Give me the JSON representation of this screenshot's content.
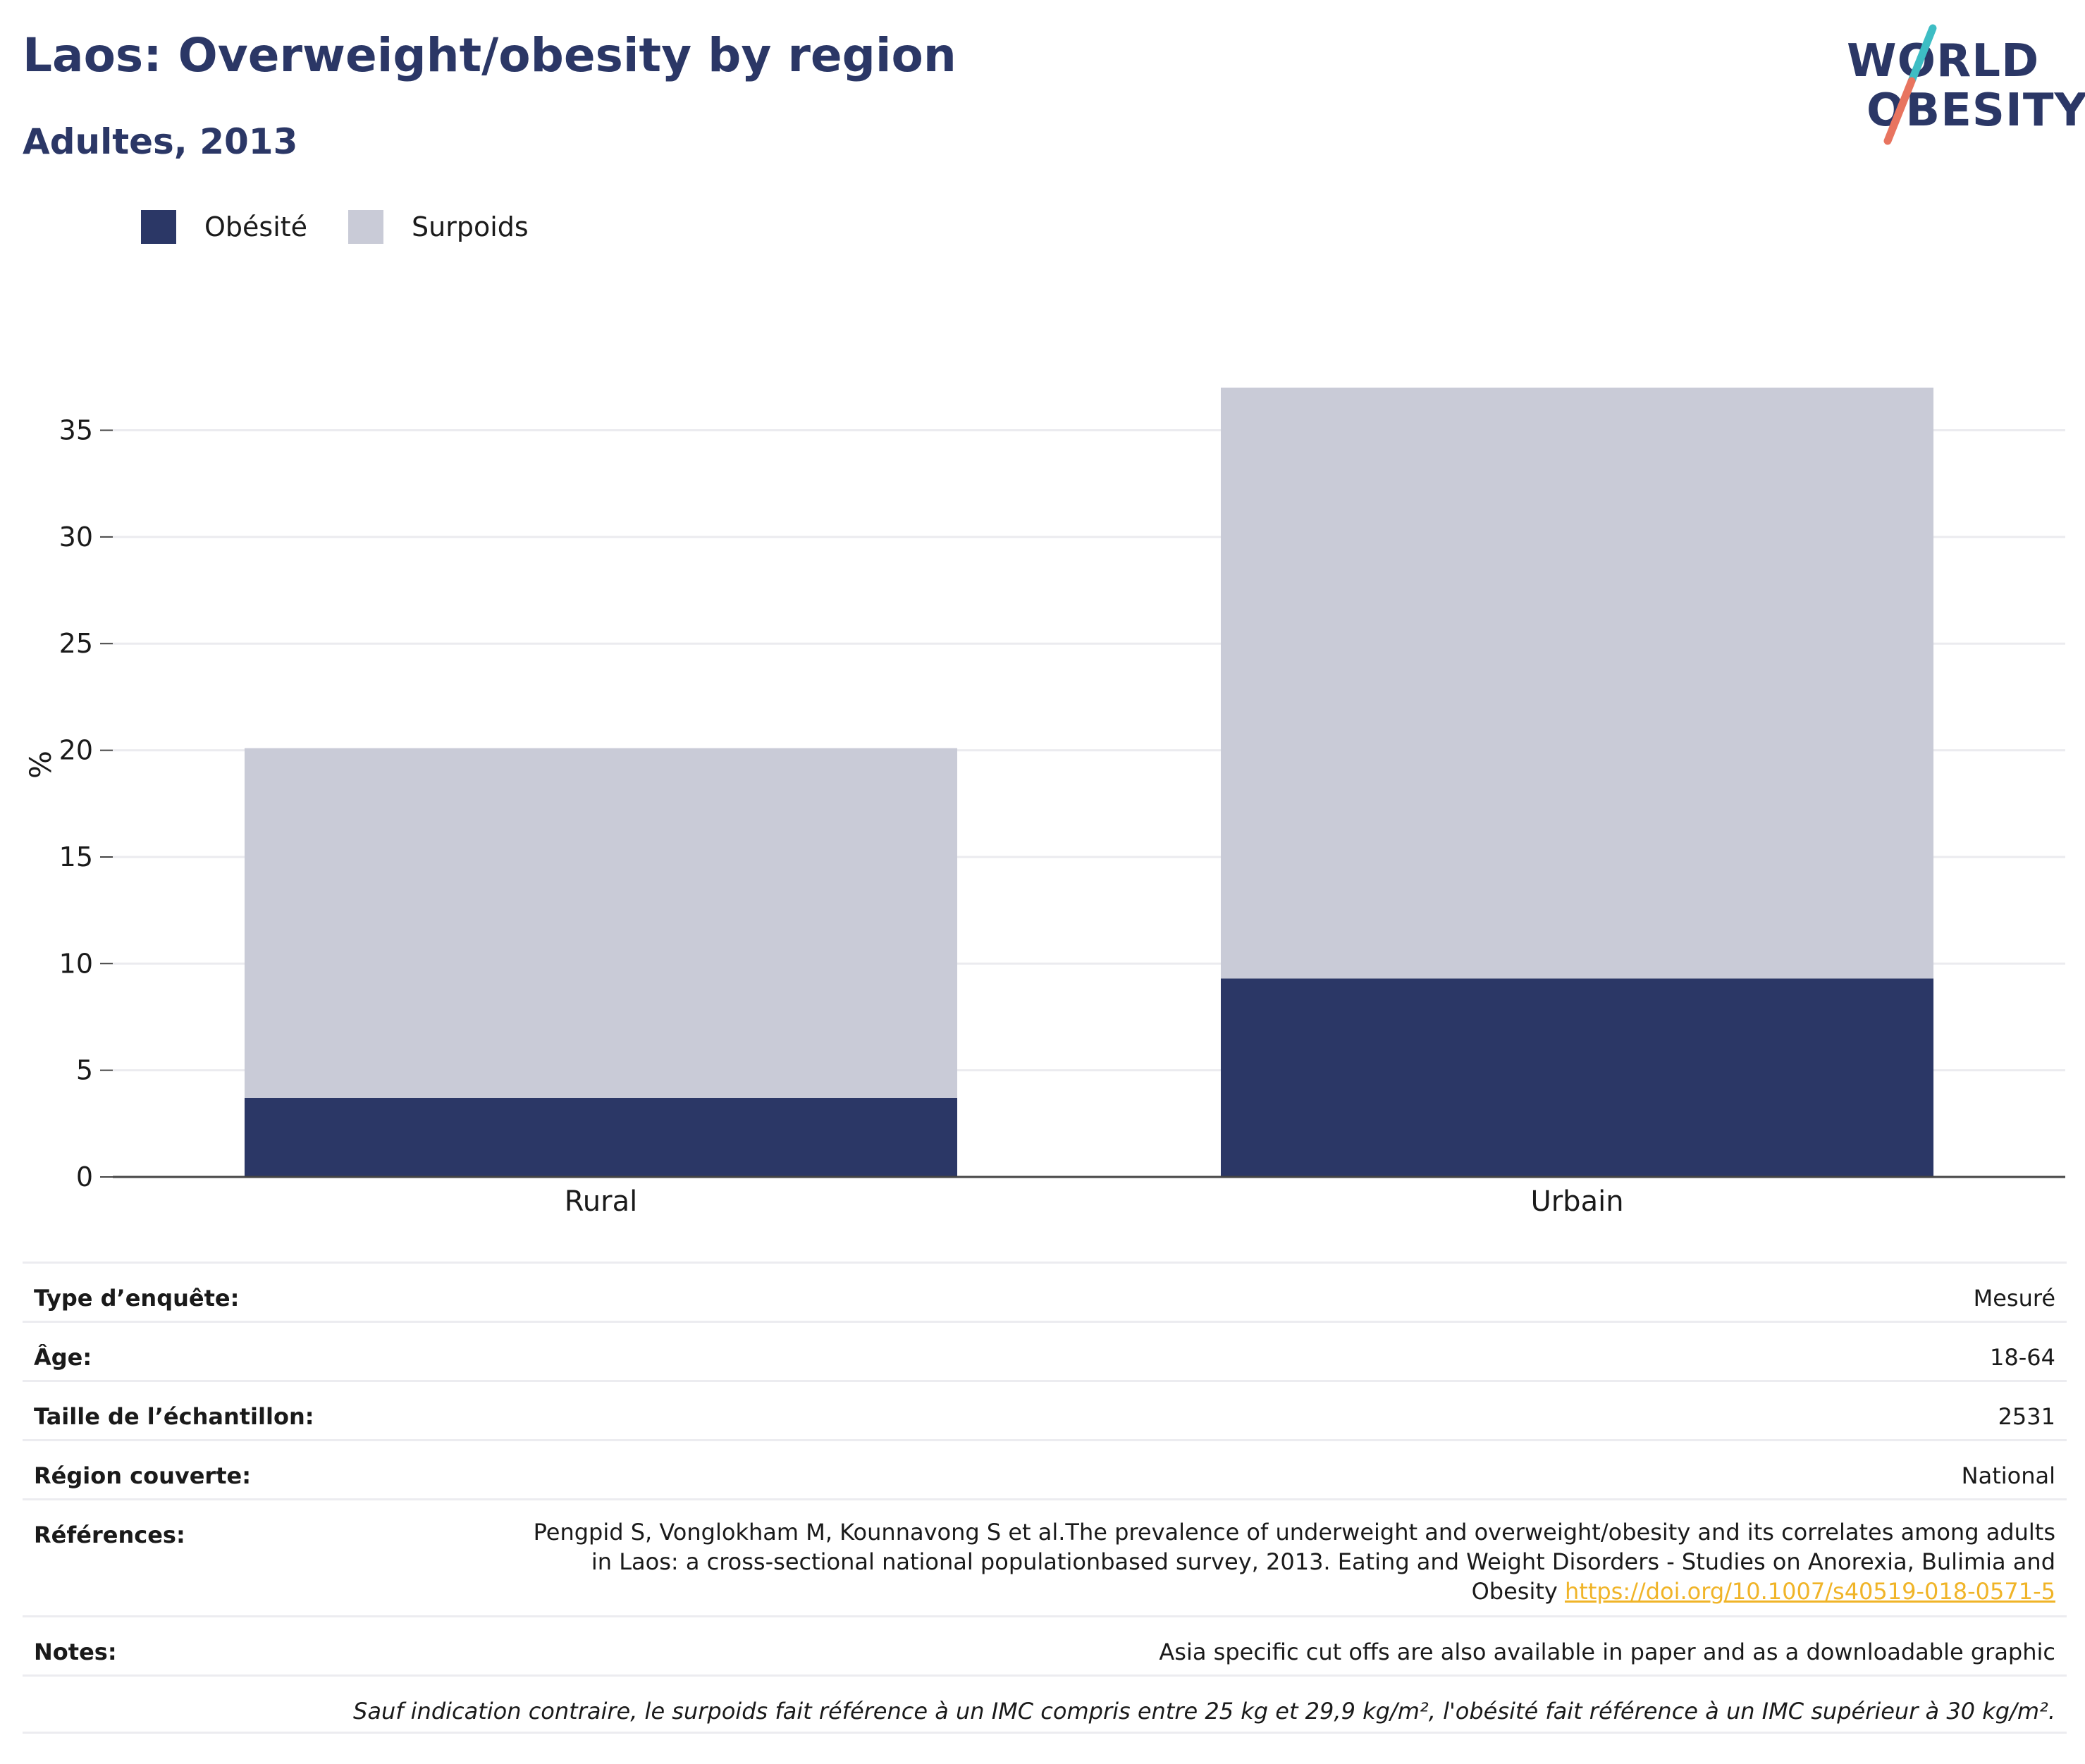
{
  "header": {
    "title": "Laos: Overweight/obesity by region",
    "subtitle": "Adultes, 2013"
  },
  "logo": {
    "line1": "WORLD",
    "line2": "OBESITY"
  },
  "colors": {
    "obesity": "#2b3766",
    "overweight": "#c9cbd7",
    "grid": "#ebebef",
    "axis": "#444444",
    "logo_slash_top": "#3dbdc4",
    "logo_slash_bottom": "#e8745f",
    "link": "#f0b428"
  },
  "chart_data": {
    "type": "bar",
    "stacked": true,
    "categories": [
      "Rural",
      "Urbain"
    ],
    "series": [
      {
        "name": "Obésité",
        "values": [
          3.7,
          9.3
        ]
      },
      {
        "name": "Surpoids",
        "values": [
          16.4,
          27.7
        ]
      }
    ],
    "ylabel": "%",
    "ylim": [
      0,
      37
    ],
    "yticks": [
      0,
      5,
      10,
      15,
      20,
      25,
      30,
      35
    ],
    "grid": true,
    "legend": "top-left"
  },
  "info": {
    "survey_type": {
      "label": "Type d’enquête:",
      "value": "Mesuré"
    },
    "age": {
      "label": "Âge:",
      "value": "18-64"
    },
    "sample_size": {
      "label": "Taille de l’échantillon:",
      "value": "2531"
    },
    "region": {
      "label": "Région couverte:",
      "value": "National"
    },
    "references": {
      "label": "Références:",
      "line1": "Pengpid S, Vonglokham M, Kounnavong S et al.The prevalence of underweight and overweight/obesity and its correlates among adults",
      "line2": "in Laos: a cross-sectional national populationbased survey, 2013. Eating and Weight Disorders - Studies on Anorexia, Bulimia and",
      "line3": "Obesity",
      "link": "https://doi.org/10.1007/s40519-018-0571-5"
    },
    "notes": {
      "label": "Notes:",
      "value": "Asia specific cut offs are also available in paper and as a downloadable graphic"
    },
    "footnote": "Sauf indication contraire, le surpoids fait référence à un IMC compris entre 25 kg et 29,9 kg/m², l'obésité fait référence à un IMC supérieur à 30 kg/m²."
  }
}
